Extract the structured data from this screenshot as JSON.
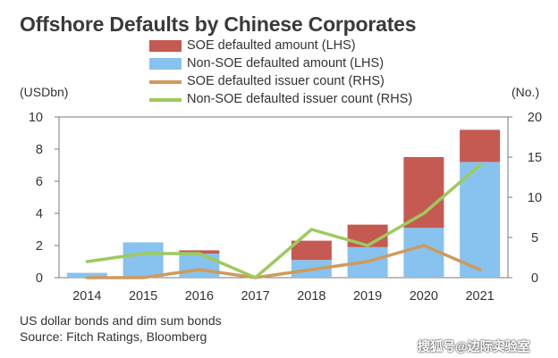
{
  "title": "Offshore Defaults by Chinese Corporates",
  "notes": [
    "US dollar bonds and dim sum bonds",
    "Source: Fitch Ratings, Bloomberg"
  ],
  "watermark": "搜狐号@边际实验室",
  "chart_data": {
    "type": "bar",
    "stacked": true,
    "categories": [
      "2014",
      "2015",
      "2016",
      "2017",
      "2018",
      "2019",
      "2020",
      "2021"
    ],
    "y_left_label": "(USDbn)",
    "y_right_label": "(No.)",
    "y_left_range": [
      0,
      10
    ],
    "y_left_ticks": [
      0,
      2,
      4,
      6,
      8,
      10
    ],
    "y_right_range": [
      0,
      20
    ],
    "y_right_ticks": [
      0,
      5,
      10,
      15,
      20
    ],
    "grid": false,
    "legend_position": "top",
    "bar_series": [
      {
        "name": "Non-SOE defaulted amount (LHS)",
        "color": "#87c3ee",
        "axis": "left",
        "values": [
          0.3,
          2.2,
          1.5,
          0,
          1.1,
          1.9,
          3.1,
          7.2
        ]
      },
      {
        "name": "SOE defaulted amount (LHS)",
        "color": "#c45a51",
        "axis": "left",
        "values": [
          0,
          0,
          0.2,
          0,
          1.2,
          1.4,
          4.4,
          2.0
        ]
      }
    ],
    "line_series": [
      {
        "name": "SOE defaulted issuer count (RHS)",
        "color": "#d09a5c",
        "axis": "right",
        "values": [
          0,
          0,
          1,
          0,
          1,
          2,
          4,
          1
        ]
      },
      {
        "name": "Non-SOE defaulted issuer count (RHS)",
        "color": "#9ccb5c",
        "axis": "right",
        "values": [
          2,
          3,
          3,
          0,
          6,
          4,
          8,
          14
        ]
      }
    ],
    "legend": [
      {
        "label": "SOE defaulted amount (LHS)",
        "kind": "box",
        "color": "#c45a51"
      },
      {
        "label": "Non-SOE defaulted amount (LHS)",
        "kind": "box",
        "color": "#87c3ee"
      },
      {
        "label": "SOE defaulted issuer count (RHS)",
        "kind": "line",
        "color": "#d09a5c"
      },
      {
        "label": "Non-SOE defaulted issuer count (RHS)",
        "kind": "line",
        "color": "#9ccb5c"
      }
    ]
  }
}
